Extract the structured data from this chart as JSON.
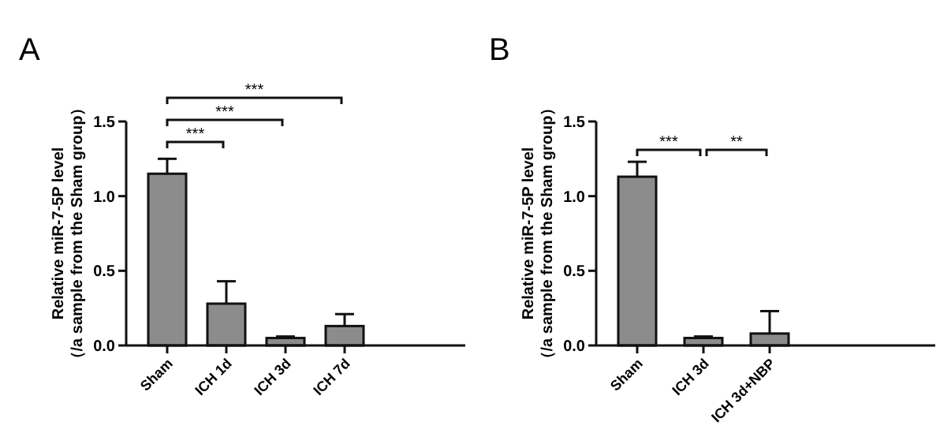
{
  "chart_data": [
    {
      "type": "bar",
      "title": "A",
      "ylabel": "Relative miR-7-5P level\n（/a sample from the Sham group）",
      "categories": [
        "Sham",
        "ICH 1d",
        "ICH 3d",
        "ICH 7d"
      ],
      "values": [
        1.15,
        0.28,
        0.05,
        0.13
      ],
      "errors": [
        0.1,
        0.15,
        0.01,
        0.08
      ],
      "color": "#8c8c8c",
      "ylim": [
        0,
        1.5
      ],
      "yticks": [
        {
          "value": 0,
          "label": "0.0"
        },
        {
          "value": 0.5,
          "label": "0.5"
        },
        {
          "value": 1,
          "label": "1.0"
        },
        {
          "value": 1.5,
          "label": "1.5"
        }
      ],
      "grid": false,
      "annotations": [
        "***",
        "***",
        "***"
      ]
    },
    {
      "type": "bar",
      "title": "B",
      "ylabel": "Relative miR-7-5P level\n（/a sample from the Sham group）",
      "categories": [
        "Sham",
        "ICH 3d",
        "ICH 3d+NBP"
      ],
      "values": [
        1.13,
        0.05,
        0.08
      ],
      "errors": [
        0.1,
        0.01,
        0.15
      ],
      "color": "#8c8c8c",
      "ylim": [
        0,
        1.5
      ],
      "yticks": [
        {
          "value": 0,
          "label": "0.0"
        },
        {
          "value": 0.5,
          "label": "0.5"
        },
        {
          "value": 1,
          "label": "1.0"
        },
        {
          "value": 1.5,
          "label": "1.5"
        }
      ],
      "grid": false,
      "annotations": [
        "***",
        "**"
      ]
    }
  ]
}
